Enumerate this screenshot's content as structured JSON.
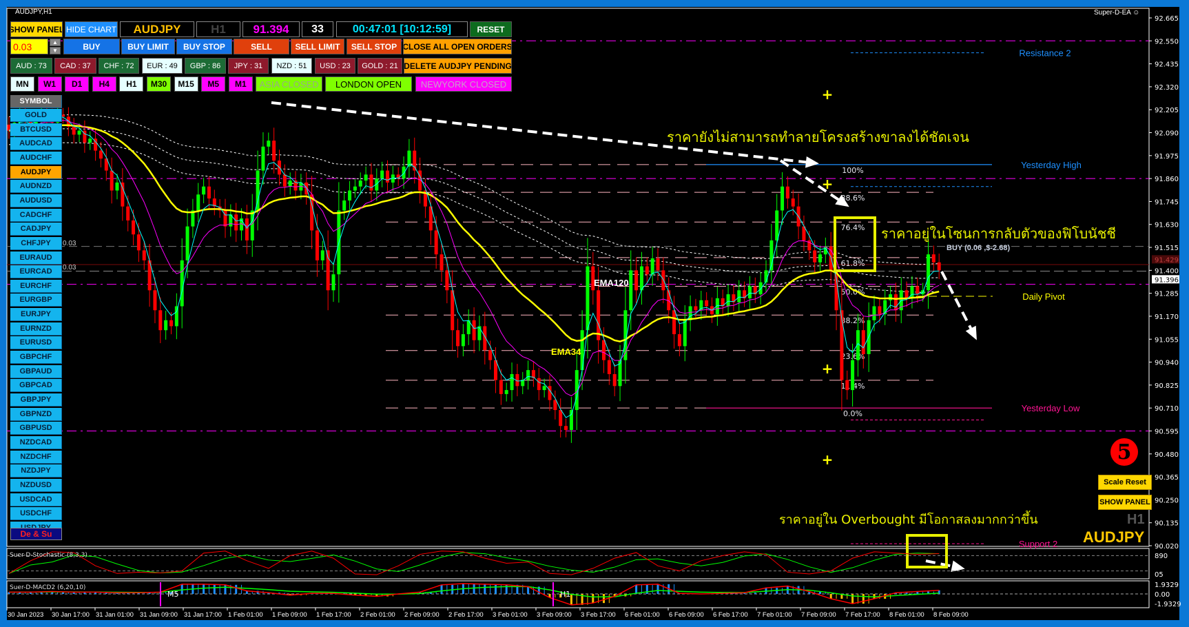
{
  "window": {
    "title": "AUDJPY,H1",
    "ea_name": "Super-D-EA",
    "ea_icon": "smiley-icon"
  },
  "panel": {
    "row1": {
      "show_panel": "SHOW PANEL",
      "hide_chart": "HIDE CHART",
      "symbol": "AUDJPY",
      "timeframe": "H1",
      "price": "91.394",
      "spread": "33",
      "timer": "00:47:01 [10:12:59]",
      "reset": "RESET"
    },
    "row2": {
      "lot": "0.03",
      "buy": "BUY",
      "buy_limit": "BUY LIMIT",
      "buy_stop": "BUY STOP",
      "sell": "SELL",
      "sell_limit": "SELL LIMIT",
      "sell_stop": "SELL STOP",
      "close_all": "CLOSE ALL OPEN ORDERS"
    },
    "strength": [
      {
        "label": "AUD : 73",
        "color": "#1c6b35"
      },
      {
        "label": "CAD : 37",
        "color": "#8e1a2c"
      },
      {
        "label": "CHF : 72",
        "color": "#1c6b35"
      },
      {
        "label": "EUR : 49",
        "color": "#e6ffff"
      },
      {
        "label": "GBP : 86",
        "color": "#1c6b35"
      },
      {
        "label": "JPY : 31",
        "color": "#8e1a2c"
      },
      {
        "label": "NZD : 51",
        "color": "#e6ffff"
      },
      {
        "label": "USD : 23",
        "color": "#8e1a2c"
      },
      {
        "label": "GOLD : 21",
        "color": "#8e1a2c"
      }
    ],
    "delete_pending": "DELETE AUDJPY PENDING",
    "timeframes": [
      {
        "label": "MN",
        "color": "#e6ffff"
      },
      {
        "label": "W1",
        "color": "#ff00ff"
      },
      {
        "label": "D1",
        "color": "#ff00ff"
      },
      {
        "label": "H4",
        "color": "#ff00ff"
      },
      {
        "label": "H1",
        "color": "#e6ffff"
      },
      {
        "label": "M30",
        "color": "#7fff00"
      },
      {
        "label": "M15",
        "color": "#e6ffff"
      },
      {
        "label": "M5",
        "color": "#ff00ff"
      },
      {
        "label": "M1",
        "color": "#ff00ff"
      }
    ],
    "sessions": [
      {
        "label": "ASIA CLOSED",
        "color": "#7fff00",
        "text": "#9aa88a"
      },
      {
        "label": "LONDON OPEN",
        "color": "#7fff00",
        "text": "#000000"
      },
      {
        "label": "NEWYORK CLOSED",
        "color": "#ff00ff",
        "text": "#c8a0c8"
      }
    ]
  },
  "symbols": {
    "header": "SYMBOL",
    "active": "AUDJPY",
    "items": [
      "GOLD",
      "BTCUSD",
      "AUDCAD",
      "AUDCHF",
      "AUDJPY",
      "AUDNZD",
      "AUDUSD",
      "CADCHF",
      "CADJPY",
      "CHFJPY",
      "EURAUD",
      "EURCAD",
      "EURCHF",
      "EURGBP",
      "EURJPY",
      "EURNZD",
      "EURUSD",
      "GBPCHF",
      "GBPAUD",
      "GBPCAD",
      "GBPJPY",
      "GBPNZD",
      "GBPUSD",
      "NZDCAD",
      "NZDCHF",
      "NZDJPY",
      "NZDUSD",
      "USDCAD",
      "USDCHF",
      "USDJPY"
    ],
    "footer": "De & Su"
  },
  "right_panel": {
    "badge": "5",
    "scale_reset": "Scale Reset",
    "show_panel": "SHOW PANEL",
    "timeframe": "H1",
    "symbol": "AUDJPY"
  },
  "annotations": {
    "text_top": "ราคายังไม่สามารถทำลายโครงสร้างขาลงได้ชัดเจน",
    "text_fib": "ราคาอยู่ในโซนการกลับตัวของฟิโบนัชชี",
    "text_stoch": "ราคาอยู่ใน Overbought มีโอกาสลงมากกว่าขึ้น",
    "ema120": "EMA120",
    "ema34": "EMA34",
    "order_label": "BUY (0.06 ,$-2.68)",
    "lot_marker_1": "0.03",
    "lot_marker_2": "0.03"
  },
  "chart_data": {
    "type": "candlestick",
    "symbol": "AUDJPY",
    "timeframe": "H1",
    "ylim": [
      90.02,
      92.665
    ],
    "y_ticks": [
      "92.665",
      "92.550",
      "92.435",
      "92.320",
      "92.205",
      "92.090",
      "91.975",
      "91.860",
      "91.745",
      "91.630",
      "91.515",
      "91.400",
      "91.285",
      "91.170",
      "91.055",
      "90.940",
      "90.825",
      "90.710",
      "90.595",
      "90.480",
      "90.365",
      "90.250",
      "90.135",
      "90.020"
    ],
    "bid": 91.396,
    "bid_label": "91.396",
    "ask": 91.429,
    "ask_label": "91.429",
    "x_labels": [
      "30 Jan 2023",
      "30 Jan 17:00",
      "31 Jan 01:00",
      "31 Jan 09:00",
      "31 Jan 17:00",
      "1 Feb 01:00",
      "1 Feb 09:00",
      "1 Feb 17:00",
      "2 Feb 01:00",
      "2 Feb 09:00",
      "2 Feb 17:00",
      "3 Feb 01:00",
      "3 Feb 09:00",
      "3 Feb 17:00",
      "6 Feb 01:00",
      "6 Feb 09:00",
      "6 Feb 17:00",
      "7 Feb 01:00",
      "7 Feb 09:00",
      "7 Feb 17:00",
      "8 Feb 01:00",
      "8 Feb 09:00"
    ],
    "close": [
      92.1,
      92.14,
      92.18,
      92.15,
      92.12,
      92.16,
      92.2,
      92.17,
      92.14,
      92.18,
      92.17,
      92.12,
      92.08,
      92.1,
      92.04,
      92.06,
      92.0,
      91.96,
      91.9,
      91.8,
      91.84,
      91.72,
      91.65,
      91.58,
      91.5,
      91.45,
      91.3,
      91.2,
      91.1,
      91.15,
      91.12,
      91.22,
      91.45,
      91.62,
      91.7,
      91.78,
      91.82,
      91.76,
      91.72,
      91.7,
      91.62,
      91.68,
      91.6,
      91.66,
      91.55,
      91.7,
      91.9,
      92.02,
      92.05,
      91.95,
      91.88,
      91.82,
      91.85,
      91.8,
      91.84,
      91.78,
      91.6,
      91.45,
      91.5,
      91.3,
      91.38,
      91.7,
      91.75,
      91.8,
      91.82,
      91.85,
      91.88,
      91.8,
      91.86,
      91.9,
      91.84,
      91.88,
      91.86,
      91.92,
      92.0,
      91.9,
      91.8,
      91.72,
      91.6,
      91.48,
      91.4,
      91.3,
      91.1,
      91.02,
      91.08,
      91.15,
      91.05,
      91.12,
      91.0,
      90.95,
      90.85,
      90.78,
      90.8,
      90.88,
      90.82,
      90.85,
      90.9,
      90.86,
      90.8,
      90.82,
      90.75,
      90.7,
      90.62,
      90.6,
      90.7,
      90.9,
      91.1,
      91.42,
      91.3,
      91.05,
      90.95,
      90.88,
      90.82,
      90.95,
      91.2,
      91.4,
      91.3,
      91.42,
      91.38,
      91.46,
      91.4,
      91.3,
      91.2,
      91.08,
      91.02,
      91.15,
      91.22,
      91.2,
      91.25,
      91.22,
      91.18,
      91.26,
      91.22,
      91.28,
      91.24,
      91.3,
      91.26,
      91.32,
      91.28,
      91.34,
      91.4,
      91.55,
      91.7,
      91.82,
      91.76,
      91.72,
      91.62,
      91.55,
      91.5,
      91.44,
      91.48,
      91.52,
      91.4,
      91.2,
      90.85,
      90.8,
      90.95,
      91.1,
      90.98,
      91.15,
      91.22,
      91.18,
      91.25,
      91.28,
      91.2,
      91.3,
      91.26,
      91.32,
      91.28,
      91.3,
      91.48,
      91.44,
      91.4
    ],
    "colors": {
      "up": "#00ff00",
      "down": "#ff0000",
      "ema34": "#ffff00",
      "ema120": "#ffffff",
      "fast": "#00ffff",
      "mid": "#ff00ff"
    },
    "fibonacci": {
      "high": 91.93,
      "low": 90.71,
      "levels": [
        {
          "ratio": 1.0,
          "label": "100%"
        },
        {
          "ratio": 0.886,
          "label": "88.6%"
        },
        {
          "ratio": 0.764,
          "label": "76.4%"
        },
        {
          "ratio": 0.618,
          "label": "61.8%"
        },
        {
          "ratio": 0.5,
          "label": "50.0%"
        },
        {
          "ratio": 0.382,
          "label": "38.2%"
        },
        {
          "ratio": 0.236,
          "label": "23.6%"
        },
        {
          "ratio": 0.114,
          "label": "11.4%"
        },
        {
          "ratio": 0.0,
          "label": "0.0%"
        }
      ]
    },
    "levels": [
      {
        "label": "Resistance 2",
        "price": 92.49,
        "color": "#1e90ff"
      },
      {
        "label": "Yesterday High",
        "price": 91.93,
        "color": "#1e90ff"
      },
      {
        "label": "Daily Pivot",
        "price": 91.27,
        "color": "#ffff00"
      },
      {
        "label": "Yesterday Low",
        "price": 90.71,
        "color": "#ff1493"
      },
      {
        "label": "Support 2",
        "price": 90.03,
        "color": "#ff1493"
      }
    ],
    "magenta_lines": [
      92.55,
      91.86,
      91.33,
      90.595
    ],
    "order_price": 91.52,
    "stochastic": {
      "title": "Suer-D-Stochastic (8,3,3)",
      "levels": [
        80,
        20
      ],
      "axis_top": "890",
      "axis_bottom": "05",
      "k": [
        10,
        60,
        95,
        92,
        40,
        10,
        15,
        12,
        20,
        90,
        98,
        60,
        30,
        80,
        98,
        70,
        8,
        5,
        40,
        85,
        98,
        95,
        70,
        50,
        55,
        10,
        5,
        30,
        70,
        92,
        40,
        20,
        60,
        80,
        95,
        85,
        15,
        8,
        20,
        70,
        95,
        90,
        85,
        88
      ]
    },
    "macd": {
      "title": "Suer-D-MACD2 (6,20,10)",
      "axis": [
        "1.9329",
        "0.00",
        "-1.9329"
      ],
      "range": [
        -1.9329,
        1.9329
      ],
      "hist": [
        0.3,
        0.3,
        0.4,
        0.3,
        0.3,
        0.2,
        0.2,
        0.3,
        1.6,
        1.6,
        1.5,
        0.5,
        0.2,
        -0.2,
        0.1,
        0.1,
        -0.2,
        -0.4,
        0.0,
        0.3,
        1.5,
        1.7,
        1.6,
        1.5,
        1.2,
        -0.6,
        -1.8,
        -1.5,
        -0.4,
        1.5,
        1.6,
        0.1,
        0.0,
        0.1,
        0.2,
        1.0,
        1.3,
        0.4,
        -0.8,
        -1.6,
        -0.8,
        0.2,
        0.4,
        0.6
      ],
      "markers": [
        {
          "label": "M5"
        },
        {
          "label": "H1"
        }
      ]
    }
  }
}
